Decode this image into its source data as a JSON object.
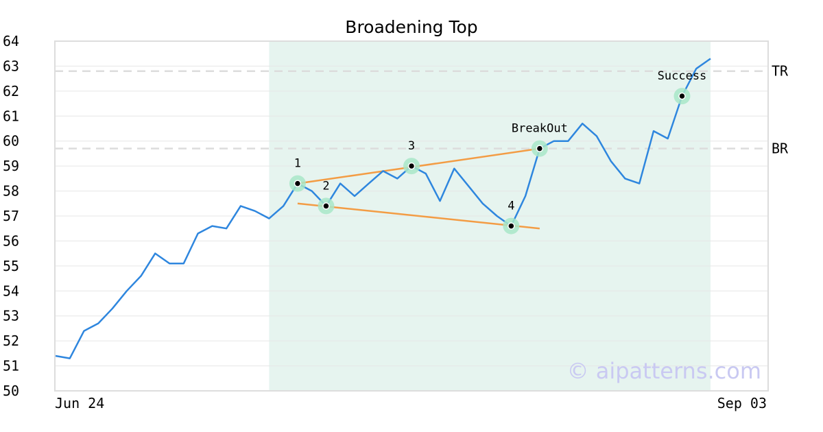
{
  "chart_data": {
    "type": "line",
    "title": "Broadening Top",
    "ylim": [
      50,
      64
    ],
    "yticks": [
      "50",
      "51",
      "52",
      "53",
      "54",
      "55",
      "56",
      "57",
      "58",
      "59",
      "60",
      "61",
      "62",
      "63",
      "64"
    ],
    "x_tick_labels": [
      "Jun 24",
      "Sep 03"
    ],
    "grid": true,
    "watermark": "© aipatterns.com",
    "colors": {
      "price": "#2e86de",
      "trendline": "#f39c44",
      "highlight": "#e6f4ef",
      "marker_halo": "#a8e6c8",
      "refline": "#dcdcdc"
    },
    "series": [
      {
        "values": [
          51.4,
          51.3,
          52.4,
          52.7,
          53.3,
          54.0,
          54.6,
          55.5,
          55.1,
          55.1,
          56.3,
          56.6,
          56.5,
          57.4,
          57.2,
          56.9,
          57.4,
          58.3,
          58.0,
          57.4,
          58.3,
          57.8,
          58.3,
          58.8,
          58.5,
          59.0,
          58.7,
          57.6,
          58.9,
          58.2,
          57.5,
          57.0,
          56.6,
          57.8,
          59.7,
          60.0,
          60.0,
          60.7,
          60.2,
          59.2,
          58.5,
          58.3,
          60.4,
          60.1,
          61.8,
          62.9,
          63.3
        ]
      }
    ],
    "highlight_range": [
      15,
      46
    ],
    "trendlines": [
      {
        "name": "upper",
        "from": [
          17,
          58.3
        ],
        "to": [
          34,
          59.7
        ]
      },
      {
        "name": "lower",
        "from": [
          17,
          57.5
        ],
        "to": [
          34,
          56.5
        ]
      }
    ],
    "reference_lines": [
      {
        "label": "TR",
        "value": 62.8
      },
      {
        "label": "BR",
        "value": 59.7
      }
    ],
    "points": [
      {
        "label": "1",
        "index": 17,
        "value": 58.3
      },
      {
        "label": "2",
        "index": 19,
        "value": 57.4
      },
      {
        "label": "3",
        "index": 25,
        "value": 59.0
      },
      {
        "label": "4",
        "index": 32,
        "value": 56.6
      },
      {
        "label": "BreakOut",
        "index": 34,
        "value": 59.7
      },
      {
        "label": "Success",
        "index": 44,
        "value": 61.8
      }
    ]
  }
}
